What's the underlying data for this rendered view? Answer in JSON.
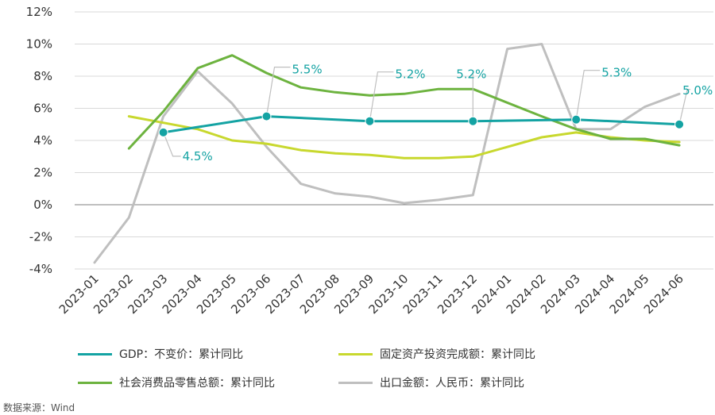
{
  "chart_data": {
    "type": "line",
    "categories": [
      "2023-01",
      "2023-02",
      "2023-03",
      "2023-04",
      "2023-05",
      "2023-06",
      "2023-07",
      "2023-08",
      "2023-09",
      "2023-10",
      "2023-11",
      "2023-12",
      "2024-01",
      "2024-02",
      "2024-03",
      "2024-04",
      "2024-05",
      "2024-06"
    ],
    "ylim": [
      -4,
      12
    ],
    "yticks": [
      -4,
      -2,
      0,
      2,
      4,
      6,
      8,
      10,
      12
    ],
    "ytick_labels": [
      "-4%",
      "-2%",
      "0%",
      "2%",
      "4%",
      "6%",
      "8%",
      "10%",
      "12%"
    ],
    "grid": true,
    "legend_position": "bottom",
    "series": [
      {
        "name": "GDP：不变价：累计同比",
        "color": "#14a3a3",
        "values": [
          null,
          null,
          4.5,
          null,
          null,
          5.5,
          null,
          null,
          5.2,
          null,
          null,
          5.2,
          null,
          null,
          5.3,
          null,
          null,
          5.0
        ],
        "markers": true,
        "data_labels": [
          "4.5%",
          "5.5%",
          "5.2%",
          "5.2%",
          "5.3%",
          "5.0%"
        ]
      },
      {
        "name": "固定资产投资完成额：累计同比",
        "color": "#c8d82e",
        "values": [
          null,
          5.5,
          5.1,
          4.7,
          4.0,
          3.8,
          3.4,
          3.2,
          3.1,
          2.9,
          2.9,
          3.0,
          null,
          4.2,
          4.5,
          4.2,
          4.0,
          3.9
        ]
      },
      {
        "name": "社会消费品零售总额：累计同比",
        "color": "#6db33f",
        "values": [
          null,
          3.5,
          5.8,
          8.5,
          9.3,
          8.2,
          7.3,
          7.0,
          6.8,
          6.9,
          7.2,
          7.2,
          null,
          5.5,
          4.7,
          4.1,
          4.1,
          3.7
        ]
      },
      {
        "name": "出口金额：人民币：累计同比",
        "color": "#bfbfbf",
        "values": [
          -3.6,
          -0.8,
          5.5,
          8.3,
          6.3,
          3.6,
          1.3,
          0.7,
          0.5,
          0.1,
          0.3,
          0.6,
          9.7,
          10.0,
          4.7,
          4.7,
          6.1,
          6.9
        ]
      }
    ]
  },
  "legend": {
    "gdp": "GDP：不变价：累计同比",
    "fai": "固定资产投资完成额：累计同比",
    "retail": "社会消费品零售总额：累计同比",
    "export": "出口金额：人民币：累计同比"
  },
  "colors": {
    "gdp": "#14a3a3",
    "fai": "#c8d82e",
    "retail": "#6db33f",
    "export": "#bfbfbf",
    "grid": "#d9d9d9"
  },
  "source": "数据来源：Wind"
}
